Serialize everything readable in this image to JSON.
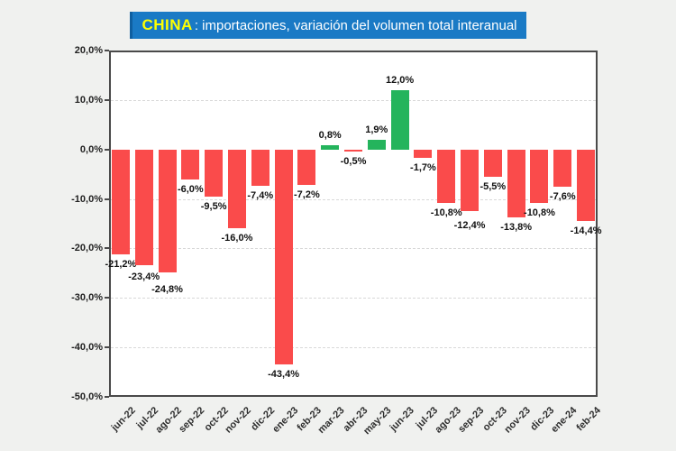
{
  "title": {
    "brand": "CHINA",
    "subtitle": ": importaciones, variación del volumen total interanual"
  },
  "colors": {
    "background": "#f0f1ef",
    "title_bg": "#1a7ac5",
    "title_bg_edge": "#0f5fa0",
    "title_brand": "#ffff00",
    "title_text": "#ffffff",
    "plot_bg": "#ffffff",
    "plot_border": "#4a4a4a",
    "gridline": "#d8d8d8",
    "bar_negative": "#fa4b4b",
    "bar_positive": "#24b45c",
    "label_text": "#111111"
  },
  "chart_data": {
    "type": "bar",
    "title": "CHINA: importaciones, variación del volumen total interanual",
    "xlabel": "",
    "ylabel": "",
    "ylim": [
      -50,
      20
    ],
    "ytick_step": 10,
    "ytick_labels": [
      "20,0%",
      "10,0%",
      "0,0%",
      "-10,0%",
      "-20,0%",
      "-30,0%",
      "-40,0%",
      "-50,0%"
    ],
    "grid": "horizontal-dashed",
    "legend": "none",
    "categories": [
      "jun-22",
      "jul-22",
      "ago-22",
      "sep-22",
      "oct-22",
      "nov-22",
      "dic-22",
      "ene-23",
      "feb-23",
      "mar-23",
      "abr-23",
      "may-23",
      "jun-23",
      "jul-23",
      "ago-23",
      "sep-23",
      "oct-23",
      "nov-23",
      "dic-23",
      "ene-24",
      "feb-24"
    ],
    "values": [
      -21.2,
      -23.4,
      -24.8,
      -6.0,
      -9.5,
      -16.0,
      -7.4,
      -43.4,
      -7.2,
      0.8,
      -0.5,
      1.9,
      12.0,
      -1.7,
      -10.8,
      -12.4,
      -5.5,
      -13.8,
      -10.8,
      -7.6,
      -14.4
    ],
    "value_labels": [
      "-21,2%",
      "-23,4%",
      "-24,8%",
      "-6,0%",
      "-9,5%",
      "-16,0%",
      "-7,4%",
      "-43,4%",
      "-7,2%",
      "0,8%",
      "-0,5%",
      "1,9%",
      "12,0%",
      "-1,7%",
      "-10,8%",
      "-12,4%",
      "-5,5%",
      "-13,8%",
      "-10,8%",
      "-7,6%",
      "-14,4%"
    ]
  }
}
